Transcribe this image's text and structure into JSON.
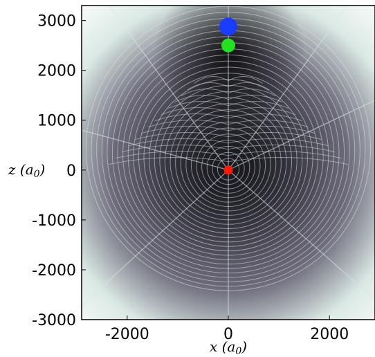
{
  "chart_data": {
    "type": "heatmap",
    "title": "",
    "xlabel": "x (a_0)",
    "ylabel": "z (a_0)",
    "xlim": [
      -2900,
      2900
    ],
    "ylim": [
      -3000,
      3300
    ],
    "x_ticks": [
      {
        "value": -2000,
        "label": "-2000"
      },
      {
        "value": 0,
        "label": "0"
      },
      {
        "value": 2000,
        "label": "2000"
      }
    ],
    "y_ticks": [
      {
        "value": 3000,
        "label": "3000"
      },
      {
        "value": 2000,
        "label": "2000"
      },
      {
        "value": 1000,
        "label": "1000"
      },
      {
        "value": 0,
        "label": "0"
      },
      {
        "value": -1000,
        "label": "-1000"
      },
      {
        "value": -2000,
        "label": "-2000"
      },
      {
        "value": -3000,
        "label": "-3000"
      }
    ],
    "markers": [
      {
        "x": 0,
        "z": 2880,
        "color": "#1a3cff",
        "size": "large"
      },
      {
        "x": 0,
        "z": 2500,
        "color": "#22e11f",
        "size": "medium"
      },
      {
        "x": 0,
        "z": 0,
        "color": "#ff1a00",
        "size": "small"
      }
    ],
    "colors": {
      "dark": "#1c1c22",
      "mid": "#6b6878",
      "light": "#dbe9e5",
      "edge": "#f4f9f7",
      "fringe": "#d9e4e6"
    }
  }
}
